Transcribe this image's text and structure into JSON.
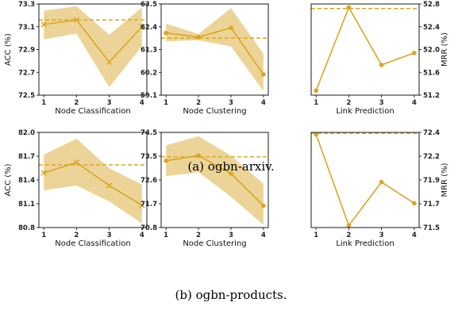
{
  "colors": {
    "line": "#DAA520",
    "band": "#E9CC86"
  },
  "captions": [
    "(a) ogbn-arxiv.",
    "(b) ogbn-products."
  ],
  "chart_data": [
    {
      "type": "line",
      "row": 0,
      "col": 0,
      "xlabel": "Node Classification",
      "ylabel": "ACC (%)",
      "ylabel_side": "left",
      "x": [
        1,
        2,
        3,
        4
      ],
      "ylim": [
        72.5,
        73.3
      ],
      "yticks": [
        "72.5",
        "72.7",
        "72.9",
        "73.1",
        "73.3"
      ],
      "marker": "x",
      "values": [
        73.12,
        73.16,
        72.79,
        73.1
      ],
      "band_upper": [
        73.24,
        73.28,
        73.03,
        73.27
      ],
      "band_lower": [
        72.99,
        73.04,
        72.57,
        72.93
      ],
      "baseline": 73.16
    },
    {
      "type": "line",
      "row": 0,
      "col": 1,
      "xlabel": "Node Clustering",
      "ylabel": "",
      "ylabel_side": "left",
      "x": [
        1,
        2,
        3,
        4
      ],
      "ylim": [
        59.1,
        63.5
      ],
      "yticks": [
        "59.1",
        "60.2",
        "61.3",
        "62.4",
        "63.5"
      ],
      "marker": "o",
      "values": [
        62.1,
        61.9,
        62.35,
        60.1
      ],
      "band_upper": [
        62.55,
        62.05,
        63.3,
        61.1
      ],
      "band_lower": [
        61.7,
        61.75,
        61.45,
        59.3
      ],
      "baseline": 61.85
    },
    {
      "type": "line",
      "row": 0,
      "col": 2,
      "xlabel": "Link Prediction",
      "ylabel": "MRR (%)",
      "ylabel_side": "right",
      "x": [
        1,
        2,
        3,
        4
      ],
      "ylim": [
        51.2,
        52.8
      ],
      "yticks": [
        "51.2",
        "51.6",
        "52.0",
        "52.4",
        "52.8"
      ],
      "marker": "o",
      "values": [
        51.28,
        52.74,
        51.73,
        51.94
      ],
      "baseline": 52.72
    },
    {
      "type": "line",
      "row": 1,
      "col": 0,
      "xlabel": "Node Classification",
      "ylabel": "ACC (%)",
      "ylabel_side": "left",
      "x": [
        1,
        2,
        3,
        4
      ],
      "ylim": [
        80.8,
        82.0
      ],
      "yticks": [
        "80.8",
        "81.1",
        "81.4",
        "81.7",
        "82.0"
      ],
      "marker": "x",
      "values": [
        81.49,
        81.62,
        81.33,
        81.08
      ],
      "band_upper": [
        81.72,
        81.92,
        81.55,
        81.34
      ],
      "band_lower": [
        81.27,
        81.33,
        81.13,
        80.85
      ],
      "baseline": 81.59
    },
    {
      "type": "line",
      "row": 1,
      "col": 1,
      "xlabel": "Node Clustering",
      "ylabel": "",
      "ylabel_side": "left",
      "x": [
        1,
        2,
        3,
        4
      ],
      "ylim": [
        70.8,
        74.5
      ],
      "yticks": [
        "70.8",
        "71.7",
        "72.6",
        "73.5",
        "74.5"
      ],
      "marker": "o",
      "values": [
        73.4,
        73.6,
        72.9,
        71.65
      ],
      "band_upper": [
        74.0,
        74.35,
        73.6,
        72.5
      ],
      "band_lower": [
        72.8,
        72.95,
        72.0,
        70.9
      ],
      "baseline": 73.55
    },
    {
      "type": "line",
      "row": 1,
      "col": 2,
      "xlabel": "Link Prediction",
      "ylabel": "MRR (%)",
      "ylabel_side": "right",
      "x": [
        1,
        2,
        3,
        4
      ],
      "ylim": [
        71.5,
        72.4
      ],
      "yticks": [
        "71.5",
        "71.7",
        "71.9",
        "72.2",
        "72.4"
      ],
      "marker": "o",
      "values": [
        72.38,
        71.52,
        71.93,
        71.73
      ],
      "baseline": 72.39
    }
  ]
}
